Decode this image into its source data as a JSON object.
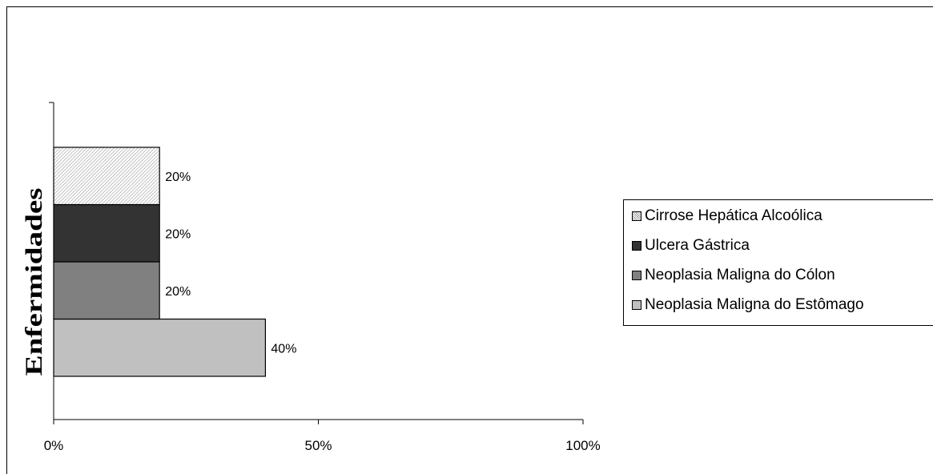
{
  "chart_data": {
    "type": "bar",
    "orientation": "horizontal",
    "stacked": true,
    "categories": [
      "Neoplasia Maligna do Estômago",
      "Neoplasia Maligna do Cólon",
      "Ulcera Gástrica",
      "Cirrose Hepática Alcoólica"
    ],
    "values": [
      40,
      20,
      20,
      20
    ],
    "data_labels": [
      "40%",
      "20%",
      "20%",
      "20%"
    ],
    "colors": [
      "#c0c0c0",
      "#808080",
      "#333333",
      "#e8e8e8"
    ],
    "patterns": [
      "solid",
      "solid",
      "solid",
      "hatched"
    ],
    "ylabel": "Enfermidades",
    "xlim": [
      0,
      100
    ],
    "x_ticks": [
      0,
      50,
      100
    ],
    "x_tick_labels": [
      "0%",
      "50%",
      "100%"
    ],
    "grid": false,
    "legend_position": "right",
    "legend": [
      {
        "label": "Cirrose Hepática Alcoólica",
        "color": "#e8e8e8",
        "pattern": "hatched"
      },
      {
        "label": "Ulcera Gástrica",
        "color": "#333333",
        "pattern": "solid"
      },
      {
        "label": "Neoplasia Maligna do Cólon",
        "color": "#808080",
        "pattern": "solid"
      },
      {
        "label": "Neoplasia Maligna do Estômago",
        "color": "#c0c0c0",
        "pattern": "solid"
      }
    ]
  }
}
